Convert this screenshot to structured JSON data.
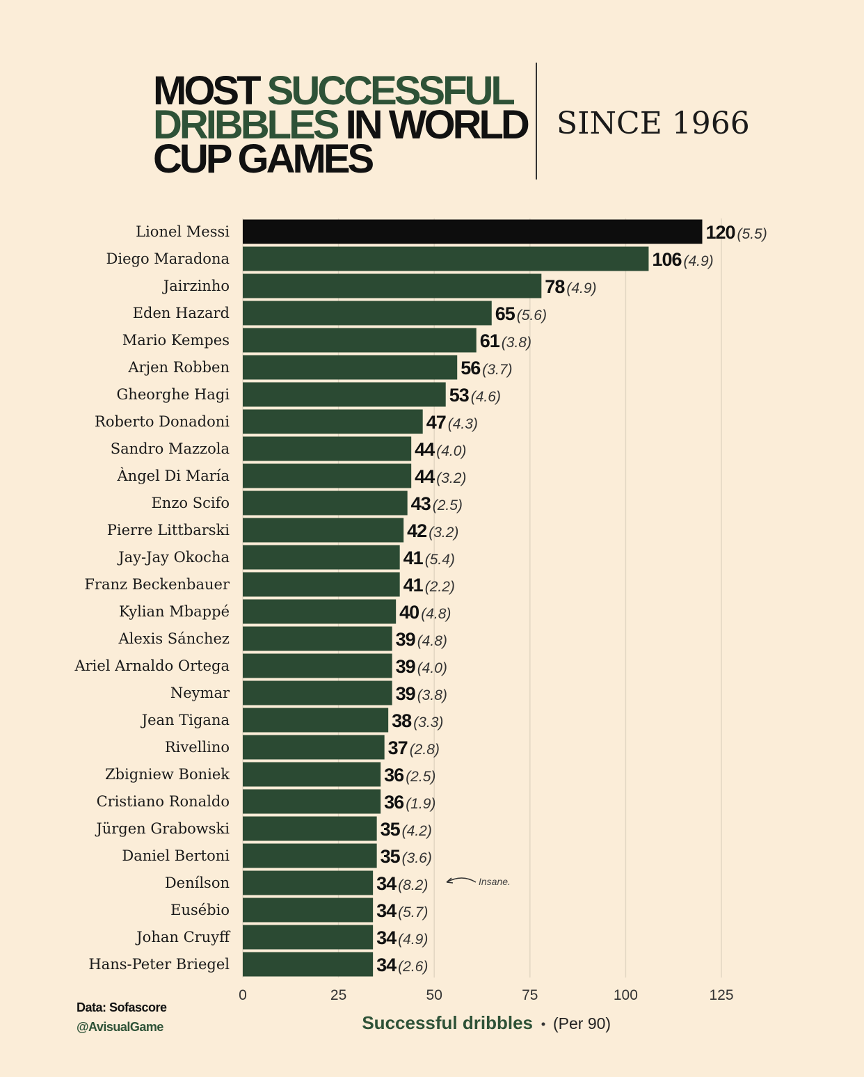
{
  "chart_data": {
    "type": "bar",
    "orientation": "horizontal",
    "title": [
      [
        {
          "text": "MOST",
          "color": "#111111"
        },
        {
          "text": "SUCCESSFUL",
          "color": "#2e5237"
        }
      ],
      [
        {
          "text": "DRIBBLES",
          "color": "#2e5237"
        },
        {
          "text": "IN WORLD",
          "color": "#111111"
        }
      ],
      [
        {
          "text": "CUP GAMES",
          "color": "#111111"
        }
      ]
    ],
    "subtitle": "SINCE 1966",
    "categories": [
      "Lionel Messi",
      "Diego Maradona",
      "Jairzinho",
      "Eden Hazard",
      "Mario Kempes",
      "Arjen Robben",
      "Gheorghe Hagi",
      "Roberto Donadoni",
      "Sandro Mazzola",
      "Àngel Di María",
      "Enzo Scifo",
      "Pierre Littbarski",
      "Jay-Jay Okocha",
      "Franz Beckenbauer",
      "Kylian Mbappé",
      "Alexis Sánchez",
      "Ariel Arnaldo Ortega",
      "Neymar",
      "Jean Tigana",
      "Rivellino",
      "Zbigniew Boniek",
      "Cristiano Ronaldo",
      "Jürgen Grabowski",
      "Daniel Bertoni",
      "Denílson",
      "Eusébio",
      "Johan Cruyff",
      "Hans-Peter Briegel"
    ],
    "values": [
      120,
      106,
      78,
      65,
      61,
      56,
      53,
      47,
      44,
      44,
      43,
      42,
      41,
      41,
      40,
      39,
      39,
      39,
      38,
      37,
      36,
      36,
      35,
      35,
      34,
      34,
      34,
      34
    ],
    "per_90_labels": [
      "(5.5)",
      "(4.9)",
      "(4.9)",
      "(5.6)",
      "(3.8)",
      "(3.7)",
      "(4.6)",
      "(4.3)",
      "(4.0)",
      "(3.2)",
      "(2.5)",
      "(3.2)",
      "(5.4)",
      "(2.2)",
      "(4.8)",
      "(4.8)",
      "(4.0)",
      "(3.8)",
      "(3.3)",
      "(2.8)",
      "(2.5)",
      "(1.9)",
      "(4.2)",
      "(3.6)",
      "(8.2)",
      "(5.7)",
      "(4.9)",
      "(2.6)"
    ],
    "colors": [
      "#0d0d0d",
      "#2b4a33",
      "#2b4a33",
      "#2b4a33",
      "#2b4a33",
      "#2b4a33",
      "#2b4a33",
      "#2b4a33",
      "#2b4a33",
      "#2b4a33",
      "#2b4a33",
      "#2b4a33",
      "#2b4a33",
      "#2b4a33",
      "#2b4a33",
      "#2b4a33",
      "#2b4a33",
      "#2b4a33",
      "#2b4a33",
      "#2b4a33",
      "#2b4a33",
      "#2b4a33",
      "#2b4a33",
      "#2b4a33",
      "#2b4a33",
      "#2b4a33",
      "#2b4a33",
      "#2b4a33"
    ],
    "xlim": [
      0,
      125
    ],
    "xticks": [
      0,
      25,
      50,
      75,
      100,
      125
    ],
    "grid": true,
    "x_label": "Successful dribbles",
    "x_label_secondary": "(Per 90)",
    "annotation": "Insane.",
    "source": "Data: Sofascore",
    "credit": "@AvisualGame"
  }
}
